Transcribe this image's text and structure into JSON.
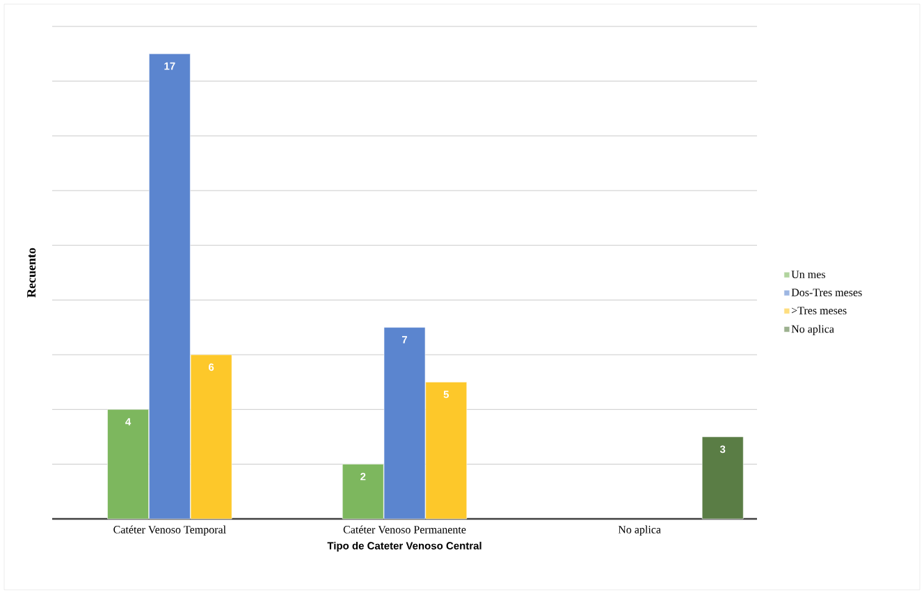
{
  "chart_data": {
    "type": "bar",
    "categories": [
      "Catéter Venoso Temporal",
      "Catéter Venoso Permanente",
      "No aplica"
    ],
    "series": [
      {
        "name": "Un mes",
        "color": "#7db75e",
        "values": [
          4,
          2,
          null
        ]
      },
      {
        "name": "Dos-Tres meses",
        "color": "#5b85cf",
        "values": [
          17,
          7,
          null
        ]
      },
      {
        "name": ">Tres meses",
        "color": "#fdc82a",
        "values": [
          6,
          5,
          null
        ]
      },
      {
        "name": "No aplica",
        "color": "#5a7d45",
        "values": [
          null,
          null,
          3
        ]
      }
    ],
    "xlabel": "Tipo de Cateter Venoso Central",
    "ylabel": "Recuento",
    "ylim": [
      0,
      18
    ],
    "yticks": [
      {
        "value": 0,
        "label": null
      },
      {
        "value": 2,
        "label": null
      },
      {
        "value": 4,
        "label": null
      },
      {
        "value": 6,
        "label": null
      },
      {
        "value": 8,
        "label": null
      },
      {
        "value": 10,
        "label": null
      },
      {
        "value": 12,
        "label": null
      },
      {
        "value": 14,
        "label": null
      },
      {
        "value": 16,
        "label": null
      },
      {
        "value": 18,
        "label": null
      }
    ],
    "tick_labels": "x",
    "grid": "y",
    "legend": "right",
    "data_labels": true
  }
}
